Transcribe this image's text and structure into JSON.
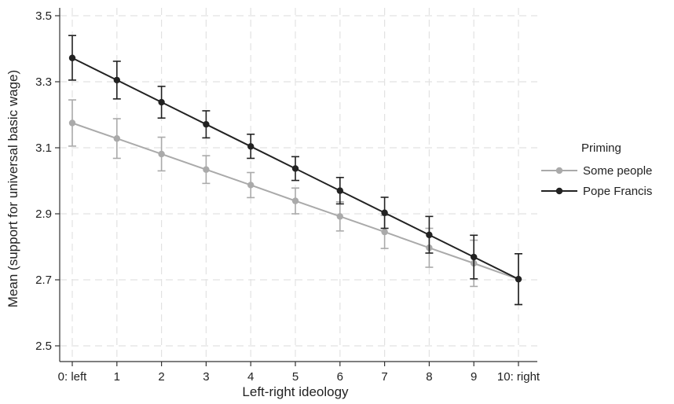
{
  "chart_data": {
    "type": "line",
    "title": "",
    "xlabel": "Left-right ideology",
    "ylabel": "Mean (support for universal basic wage)",
    "categories": [
      "0: left",
      "1",
      "2",
      "3",
      "4",
      "5",
      "6",
      "7",
      "8",
      "9",
      "10: right"
    ],
    "yticks": [
      "2.5",
      "2.7",
      "2.9",
      "3.1",
      "3.3",
      "3.5"
    ],
    "ylim": [
      2.5,
      3.5
    ],
    "grid": true,
    "legend": {
      "title": "Priming",
      "placement": "right"
    },
    "series": [
      {
        "name": "Some people",
        "color": "#aaaaaa",
        "values": [
          3.175,
          3.128,
          3.081,
          3.034,
          2.987,
          2.939,
          2.892,
          2.845,
          2.797,
          2.75,
          2.702
        ],
        "ci_low": [
          3.105,
          3.068,
          3.03,
          2.992,
          2.949,
          2.9,
          2.848,
          2.795,
          2.738,
          2.68,
          2.625
        ],
        "ci_high": [
          3.245,
          3.188,
          3.132,
          3.076,
          3.025,
          2.978,
          2.936,
          2.895,
          2.856,
          2.82,
          2.779
        ]
      },
      {
        "name": "Pope Francis",
        "color": "#222222",
        "values": [
          3.372,
          3.305,
          3.238,
          3.171,
          3.104,
          3.037,
          2.97,
          2.903,
          2.836,
          2.769,
          2.702
        ],
        "ci_low": [
          3.305,
          3.248,
          3.19,
          3.13,
          3.068,
          3.001,
          2.93,
          2.856,
          2.781,
          2.703,
          2.625
        ],
        "ci_high": [
          3.44,
          3.362,
          3.286,
          3.212,
          3.141,
          3.073,
          3.01,
          2.95,
          2.892,
          2.835,
          2.779
        ]
      }
    ]
  }
}
